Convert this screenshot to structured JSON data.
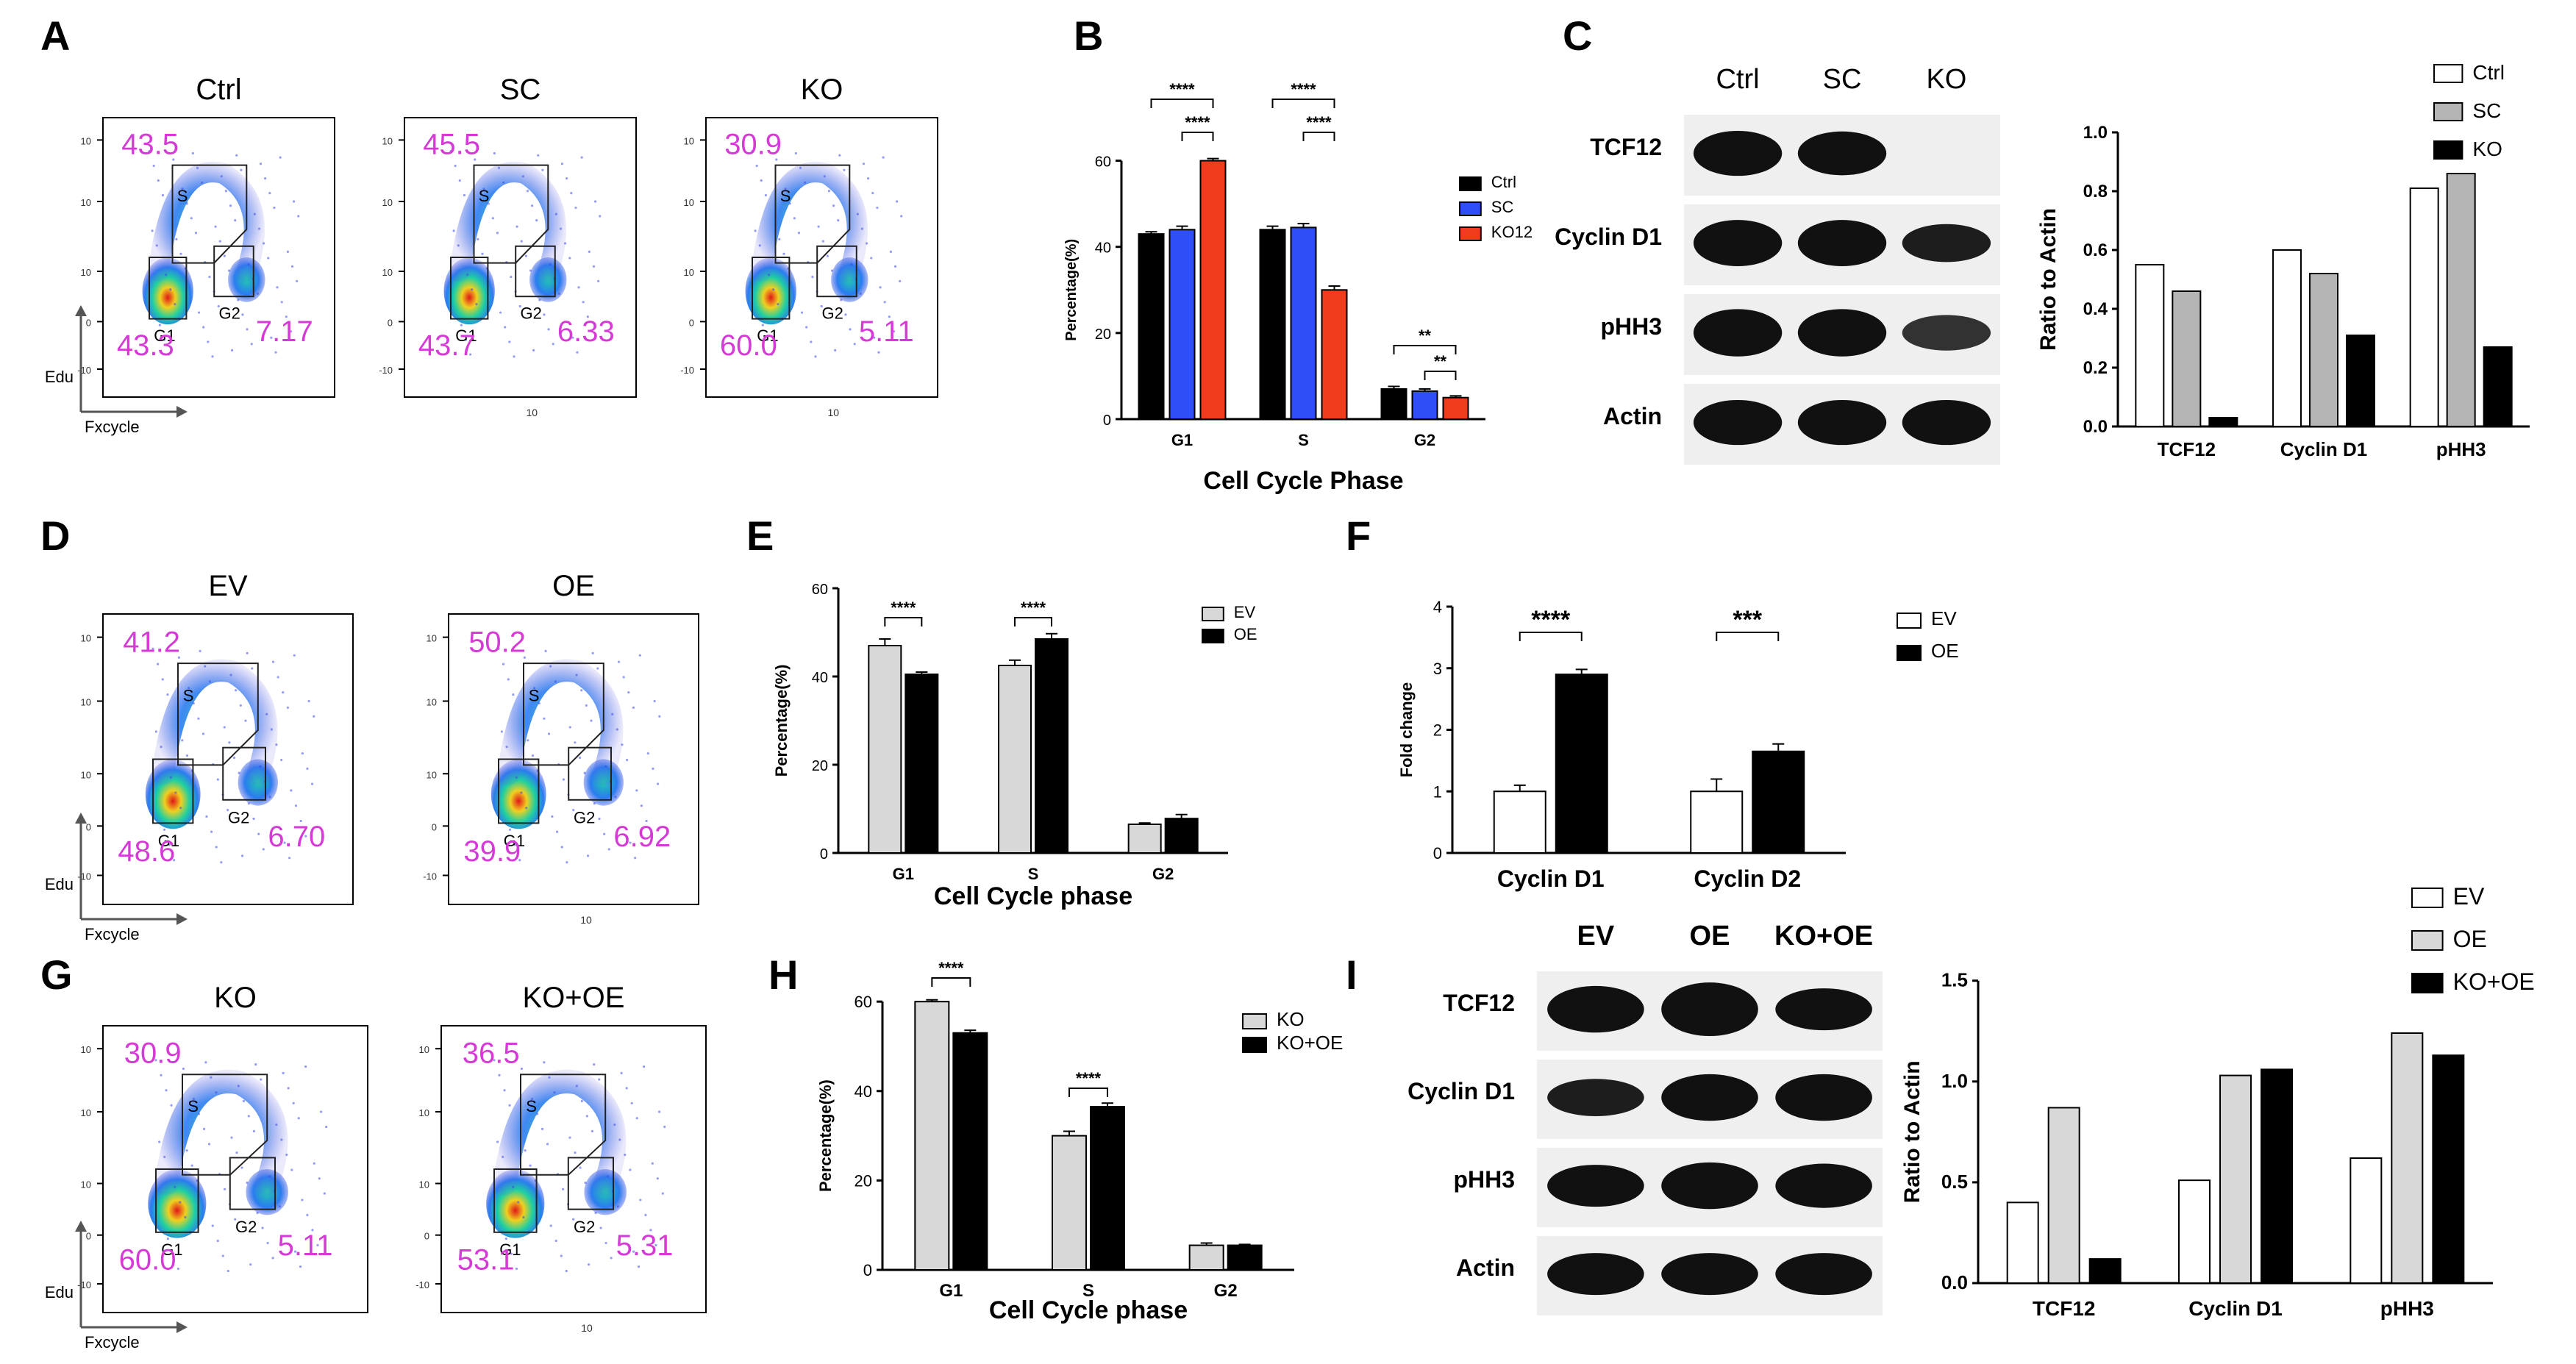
{
  "colors": {
    "magenta": "#d63ad6",
    "ctrl": "#000000",
    "sc": "#2f4ef7",
    "ko12": "#f03c1c",
    "light_gray": "#d8d8d8",
    "mid_gray": "#b4b4b4",
    "black": "#000000",
    "white": "#ffffff"
  },
  "panel_labels": [
    "A",
    "B",
    "C",
    "D",
    "E",
    "F",
    "G",
    "H",
    "I"
  ],
  "flow": {
    "y_axis_label": "Edu",
    "x_axis_label": "Fxcycle",
    "gate_labels": {
      "s": "S",
      "g1": "G1",
      "g2": "G2"
    },
    "tick_labels_y": [
      "10",
      "10",
      "10",
      "0",
      "-10"
    ],
    "tick_label_x": "10",
    "A": [
      {
        "title": "Ctrl",
        "s": "43.5",
        "g1": "43.3",
        "g2": "7.17"
      },
      {
        "title": "SC",
        "s": "45.5",
        "g1": "43.7",
        "g2": "6.33"
      },
      {
        "title": "KO",
        "s": "30.9",
        "g1": "60.0",
        "g2": "5.11"
      }
    ],
    "D": [
      {
        "title": "EV",
        "s": "41.2",
        "g1": "48.6",
        "g2": "6.70"
      },
      {
        "title": "OE",
        "s": "50.2",
        "g1": "39.9",
        "g2": "6.92"
      }
    ],
    "G": [
      {
        "title": "KO",
        "s": "30.9",
        "g1": "60.0",
        "g2": "5.11"
      },
      {
        "title": "KO+OE",
        "s": "36.5",
        "g1": "53.1",
        "g2": "5.31"
      }
    ]
  },
  "blots": {
    "C": {
      "lanes": [
        "Ctrl",
        "SC",
        "KO"
      ],
      "rows": [
        "TCF12",
        "Cyclin D1",
        "pHH3",
        "Actin"
      ]
    },
    "I": {
      "lanes": [
        "EV",
        "OE",
        "KO+OE"
      ],
      "rows": [
        "TCF12",
        "Cyclin D1",
        "pHH3",
        "Actin"
      ]
    }
  },
  "chart_data": [
    {
      "panel": "B",
      "type": "bar",
      "categories": [
        "G1",
        "S",
        "G2"
      ],
      "series": [
        {
          "name": "Ctrl",
          "values": [
            43,
            44,
            7
          ],
          "errors": [
            0.5,
            0.8,
            0.6
          ]
        },
        {
          "name": "SC",
          "values": [
            44,
            44.5,
            6.5
          ],
          "errors": [
            0.8,
            0.9,
            0.5
          ]
        },
        {
          "name": "KO12",
          "values": [
            60,
            30,
            5
          ],
          "errors": [
            0.5,
            0.9,
            0.4
          ]
        }
      ],
      "xlabel": "Cell Cycle Phase",
      "ylabel": "Percentage(%)",
      "ylim": [
        0,
        70
      ],
      "yticks": [
        0,
        20,
        40,
        60
      ],
      "significance": [
        "****",
        "****",
        "****",
        "****",
        "**",
        "**"
      ]
    },
    {
      "panel": "C-right",
      "type": "bar",
      "categories": [
        "TCF12",
        "Cyclin D1",
        "pHH3"
      ],
      "series": [
        {
          "name": "Ctrl",
          "values": [
            0.55,
            0.6,
            0.81
          ]
        },
        {
          "name": "SC",
          "values": [
            0.46,
            0.52,
            0.86
          ]
        },
        {
          "name": "KO",
          "values": [
            0.03,
            0.31,
            0.27
          ]
        }
      ],
      "ylabel": "Ratio to Actin",
      "ylim": [
        0,
        1.05
      ],
      "yticks": [
        0.0,
        0.2,
        0.4,
        0.6,
        0.8,
        1.0
      ],
      "ytick_labels": [
        "0.0",
        "0.2",
        "0.4",
        "0.6",
        "0.8",
        "1.0"
      ]
    },
    {
      "panel": "E",
      "type": "bar",
      "categories": [
        "G1",
        "S",
        "G2"
      ],
      "series": [
        {
          "name": "EV",
          "values": [
            47,
            42.5,
            6.5
          ],
          "errors": [
            1.5,
            1.2,
            0.3
          ]
        },
        {
          "name": "OE",
          "values": [
            40.5,
            48.5,
            7.8
          ],
          "errors": [
            0.5,
            1.2,
            0.9
          ]
        }
      ],
      "xlabel": "Cell Cycle phase",
      "ylabel": "Percentage(%)",
      "ylim": [
        0,
        60
      ],
      "yticks": [
        0,
        20,
        40,
        60
      ],
      "significance": [
        "****",
        "****"
      ]
    },
    {
      "panel": "F",
      "type": "bar",
      "categories": [
        "Cyclin D1",
        "Cyclin D2"
      ],
      "series": [
        {
          "name": "EV",
          "values": [
            1.0,
            1.0
          ],
          "errors": [
            0.1,
            0.2
          ]
        },
        {
          "name": "OE",
          "values": [
            2.9,
            1.65
          ],
          "errors": [
            0.08,
            0.12
          ]
        }
      ],
      "ylabel": "Fold change",
      "ylim": [
        0,
        4
      ],
      "yticks": [
        0,
        1,
        2,
        3,
        4
      ],
      "significance": [
        "****",
        "***"
      ]
    },
    {
      "panel": "H",
      "type": "bar",
      "categories": [
        "G1",
        "S",
        "G2"
      ],
      "series": [
        {
          "name": "KO",
          "values": [
            60,
            30,
            5.5
          ],
          "errors": [
            0.4,
            1.0,
            0.5
          ]
        },
        {
          "name": "KO+OE",
          "values": [
            53,
            36.5,
            5.5
          ],
          "errors": [
            0.6,
            0.8,
            0.2
          ]
        }
      ],
      "xlabel": "Cell Cycle phase",
      "ylabel": "Percentage(%)",
      "ylim": [
        0,
        62
      ],
      "yticks": [
        0,
        20,
        40,
        60
      ],
      "significance": [
        "****",
        "****"
      ]
    },
    {
      "panel": "I-right",
      "type": "bar",
      "categories": [
        "TCF12",
        "Cyclin D1",
        "pHH3"
      ],
      "series": [
        {
          "name": "EV",
          "values": [
            0.4,
            0.51,
            0.62
          ]
        },
        {
          "name": "OE",
          "values": [
            0.87,
            1.03,
            1.24
          ]
        },
        {
          "name": "KO+OE",
          "values": [
            0.12,
            1.06,
            1.13
          ]
        }
      ],
      "ylabel": "Ratio to Actin",
      "ylim": [
        0,
        1.55
      ],
      "yticks": [
        0.0,
        0.5,
        1.0,
        1.5
      ],
      "ytick_labels": [
        "0.0",
        "0.5",
        "1.0",
        "1.5"
      ]
    }
  ]
}
